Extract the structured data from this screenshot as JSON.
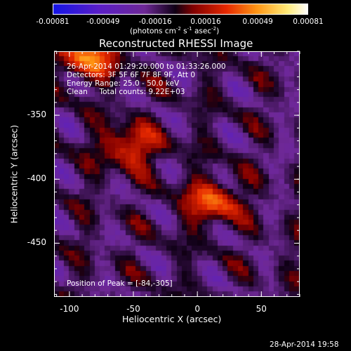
{
  "chart_data": {
    "type": "heatmap",
    "title": "Reconstructed RHESSI Image",
    "xlabel": "Heliocentric X (arcsec)",
    "ylabel": "Heliocentric Y (arcsec)",
    "xlim": [
      -112,
      80
    ],
    "ylim": [
      -492,
      -300
    ],
    "x_ticks": [
      "-100",
      "-50",
      "0",
      "50"
    ],
    "x_tick_values": [
      -100,
      -50,
      0,
      50
    ],
    "y_ticks": [
      "-350",
      "-400",
      "-450"
    ],
    "y_tick_values": [
      -350,
      -400,
      -450
    ],
    "colorbar": {
      "ticks": [
        "-0.00081",
        "-0.00049",
        "-0.00016",
        "0.00016",
        "0.00049",
        "0.00081"
      ],
      "tick_values": [
        -0.00081,
        -0.00049,
        -0.00016,
        0.00016,
        0.00049,
        0.00081
      ],
      "range": [
        -0.00081,
        0.00081
      ],
      "unit_label_parts": [
        "(photons cm",
        "-2",
        " s",
        "-1",
        " asec",
        "-2",
        ")"
      ]
    },
    "annotations": {
      "time_range": "26-Apr-2014 01:29:20.000 to 01:33:26.000",
      "detectors": "Detectors: 3F 5F 6F 7F 8F 9F, Att 0",
      "energy": "Energy Range: 25.0 - 50.0 keV",
      "clean": "Clean     Total counts: 9.22E+03",
      "peak": "Position of Peak = [-84,-305]"
    },
    "sources": [
      {
        "x": -84,
        "y": -305,
        "strength": 1.0
      },
      {
        "x": -52,
        "y": -375,
        "strength": 0.82
      },
      {
        "x": 12,
        "y": -418,
        "strength": 0.85
      }
    ],
    "colors": {
      "background": "#000000",
      "text": "#ffffff"
    }
  },
  "footer": {
    "timestamp": "28-Apr-2014 19:58"
  }
}
